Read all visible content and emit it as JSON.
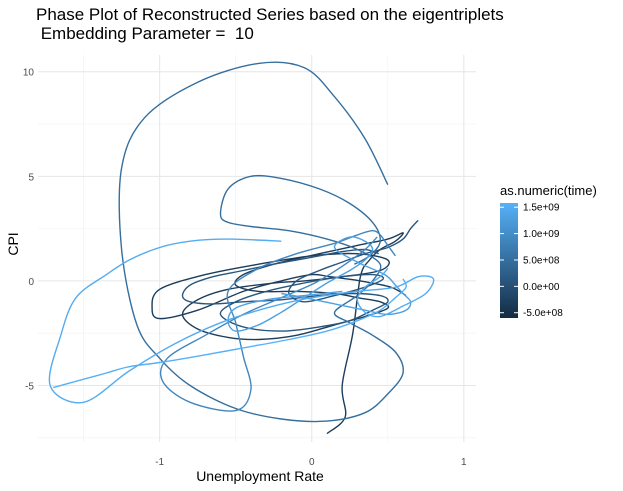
{
  "chart_data": {
    "type": "line",
    "title": "Phase Plot of Reconstructed Series based on the eigentriplets\n Embedding Parameter =  10",
    "title_lines": [
      "Phase Plot of Reconstructed Series based on the eigentriplets",
      " Embedding Parameter =  10"
    ],
    "xlabel": "Unemployment Rate",
    "ylabel": "CPI",
    "xlim": [
      -1.8,
      1.08
    ],
    "ylim": [
      -7.7,
      10.8
    ],
    "x_ticks": [
      -1,
      0,
      1
    ],
    "x_tick_labels": [
      "-1",
      "0",
      "1"
    ],
    "y_ticks": [
      -5,
      0,
      5,
      10
    ],
    "y_tick_labels": [
      "-5",
      "0",
      "5",
      "10"
    ],
    "grid": true,
    "theme": "minimal",
    "legend": {
      "title": "as.numeric(time)",
      "position": "right",
      "ticks": [
        -500000000,
        0,
        500000000,
        1000000000,
        1500000000
      ],
      "labels": [
        "-5.0e+08",
        "0.0e+00",
        "5.0e+08",
        "1.0e+09",
        "1.5e+09"
      ],
      "color_low": "#132b43",
      "color_high": "#56b1f7",
      "range": [
        -600000000,
        1580000000
      ]
    },
    "series": [
      {
        "time": -300000000,
        "x": [
          0.62,
          0.52,
          0.32,
          0.12,
          0.0,
          -0.2,
          -0.45,
          -0.75,
          -1.0,
          -1.05,
          -1.0,
          -0.7,
          -0.35,
          0.0,
          0.3,
          0.5,
          0.45,
          0.2,
          -0.05,
          -0.25,
          -0.55,
          -0.75,
          -0.85,
          -0.75,
          -0.55,
          -0.35,
          -0.1,
          0.15,
          0.35,
          0.5,
          0.45,
          0.3,
          0.15,
          -0.1,
          -0.35,
          -0.5,
          -0.45,
          -0.25,
          0.05,
          0.3,
          0.5,
          0.6,
          0.55,
          0.45,
          0.38,
          0.32,
          0.27,
          0.2,
          0.22,
          0.1
        ],
        "y": [
          -0.7,
          -0.3,
          0.0,
          0.2,
          0.3,
          0.0,
          -0.5,
          -1.4,
          -1.8,
          -1.3,
          -0.4,
          0.3,
          0.8,
          1.2,
          1.3,
          1.0,
          0.5,
          0.2,
          0.0,
          -0.1,
          -0.4,
          -0.9,
          -1.6,
          -2.3,
          -2.7,
          -2.8,
          -2.6,
          -2.1,
          -1.7,
          -1.3,
          -1.0,
          -0.8,
          -0.6,
          -0.5,
          -0.5,
          -0.2,
          0.3,
          0.8,
          1.3,
          1.7,
          2.0,
          2.3,
          1.9,
          1.5,
          1.0,
          0.2,
          -2.5,
          -5.0,
          -6.5,
          -7.3
        ]
      },
      {
        "time": 100000000,
        "x": [
          0.44,
          0.35,
          0.2,
          0.05,
          -0.1,
          -0.25,
          -0.45,
          -0.65,
          -0.8,
          -0.85,
          -0.8,
          -0.65,
          -0.45,
          -0.2,
          0.05,
          0.25,
          0.45,
          0.5,
          0.4,
          0.25,
          0.05,
          -0.2,
          -0.45,
          -0.6,
          -0.5,
          -0.3,
          -0.05,
          0.2,
          0.4,
          0.47,
          0.35,
          0.15,
          -0.05,
          -0.15,
          -0.1,
          0.05,
          0.2,
          0.35,
          0.5,
          0.6,
          0.65,
          0.7
        ],
        "y": [
          1.3,
          1.5,
          1.4,
          1.2,
          1.0,
          0.8,
          0.5,
          0.2,
          -0.2,
          -0.7,
          -1.0,
          -1.1,
          -1.0,
          -0.9,
          -0.7,
          -0.6,
          -0.7,
          -1.0,
          -1.4,
          -1.9,
          -2.2,
          -2.4,
          -2.2,
          -1.6,
          -1.0,
          -0.5,
          -0.1,
          0.2,
          0.3,
          0.1,
          -0.3,
          -0.7,
          -1.0,
          -0.6,
          0.0,
          0.5,
          0.9,
          1.3,
          1.6,
          2.0,
          2.5,
          2.9
        ]
      },
      {
        "time": 500000000,
        "x": [
          0.5,
          0.35,
          0.15,
          -0.05,
          -0.35,
          -0.75,
          -1.1,
          -1.25,
          -1.25,
          -1.15,
          -1.0,
          -0.8,
          -0.5,
          -0.2,
          0.1,
          0.35,
          0.5,
          0.6,
          0.55,
          0.4,
          0.25,
          0.15,
          0.3,
          0.4,
          0.45,
          0.3,
          0.1,
          -0.15,
          -0.4,
          -0.55,
          -0.6,
          -0.55,
          -0.4,
          -0.2,
          0.05,
          0.25,
          0.4,
          0.45,
          0.38,
          0.28
        ],
        "y": [
          4.6,
          6.8,
          8.8,
          10.2,
          10.4,
          9.5,
          7.8,
          5.4,
          1.5,
          -2.1,
          -3.7,
          -5.0,
          -6.1,
          -6.6,
          -6.7,
          -6.3,
          -5.4,
          -4.4,
          -3.4,
          -2.6,
          -2.0,
          -1.5,
          -0.7,
          0.0,
          0.8,
          1.5,
          2.0,
          2.4,
          2.6,
          2.8,
          3.2,
          4.4,
          5.0,
          4.9,
          4.4,
          3.7,
          2.8,
          1.9,
          1.2,
          0.8
        ]
      },
      {
        "time": 900000000,
        "x": [
          0.43,
          0.35,
          0.2,
          0.02,
          -0.2,
          -0.45,
          -0.7,
          -0.95,
          -0.98,
          -0.8,
          -0.5,
          -0.4,
          -0.45,
          -0.5,
          -0.55,
          -0.35,
          -0.1,
          0.15,
          0.3,
          0.4,
          0.45,
          0.5,
          0.55
        ],
        "y": [
          2.1,
          1.5,
          0.7,
          -0.1,
          -0.8,
          -1.6,
          -2.6,
          -3.7,
          -4.8,
          -5.8,
          -6.2,
          -5.2,
          -3.6,
          -2.0,
          -0.5,
          0.6,
          1.3,
          1.8,
          2.2,
          2.4,
          2.2,
          1.7,
          1.2
        ]
      },
      {
        "time": 1300000000,
        "x": [
          0.2,
          -0.05,
          -0.3,
          -0.5,
          -0.55,
          -0.5,
          -0.35,
          -0.2,
          -0.05,
          0.1,
          0.25,
          0.35,
          0.4,
          0.35,
          0.25,
          0.15,
          0.3,
          0.48,
          0.55,
          0.6,
          0.65,
          0.62,
          0.5,
          0.35,
          0.15,
          -0.05,
          -0.2
        ],
        "y": [
          -0.5,
          -0.7,
          -0.9,
          -1.3,
          -1.9,
          -2.4,
          -2.1,
          -1.5,
          -0.8,
          -0.1,
          0.5,
          1.0,
          1.5,
          1.9,
          2.1,
          1.6,
          0.9,
          0.3,
          -0.2,
          -0.6,
          -1.0,
          -1.4,
          -1.6,
          -1.4,
          -1.1,
          -0.8,
          -0.6
        ]
      },
      {
        "time": 1500000000,
        "x": [
          -0.2,
          -0.55,
          -0.8,
          -1.0,
          -1.2,
          -1.35,
          -1.55,
          -1.65,
          -1.72,
          -1.5,
          -1.2,
          -0.9,
          -0.6,
          -0.3,
          0.0,
          0.3,
          0.55,
          0.7,
          0.8,
          0.75,
          0.6,
          0.45,
          0.35,
          0.3,
          0.35,
          0.45,
          0.5
        ],
        "y": [
          1.9,
          2.0,
          1.9,
          1.6,
          1.0,
          0.3,
          -0.8,
          -2.6,
          -5.0,
          -5.8,
          -4.3,
          -3.0,
          -2.0,
          -1.3,
          -0.8,
          -0.5,
          -0.3,
          0.2,
          0.1,
          -0.6,
          -1.2,
          -1.7,
          -1.5,
          -0.9,
          -0.3,
          0.2,
          0.6
        ]
      },
      {
        "time": 1580000000,
        "x": [
          0.6,
          0.62,
          0.55,
          0.45,
          0.3,
          0.1,
          -0.15,
          -0.45,
          -0.75,
          -1.0,
          -1.2,
          -1.35,
          -1.5,
          -1.7
        ],
        "y": [
          0.1,
          -0.3,
          -0.8,
          -1.4,
          -1.9,
          -2.4,
          -2.8,
          -3.2,
          -3.6,
          -3.9,
          -4.1,
          -4.4,
          -4.7,
          -5.1
        ]
      }
    ]
  }
}
